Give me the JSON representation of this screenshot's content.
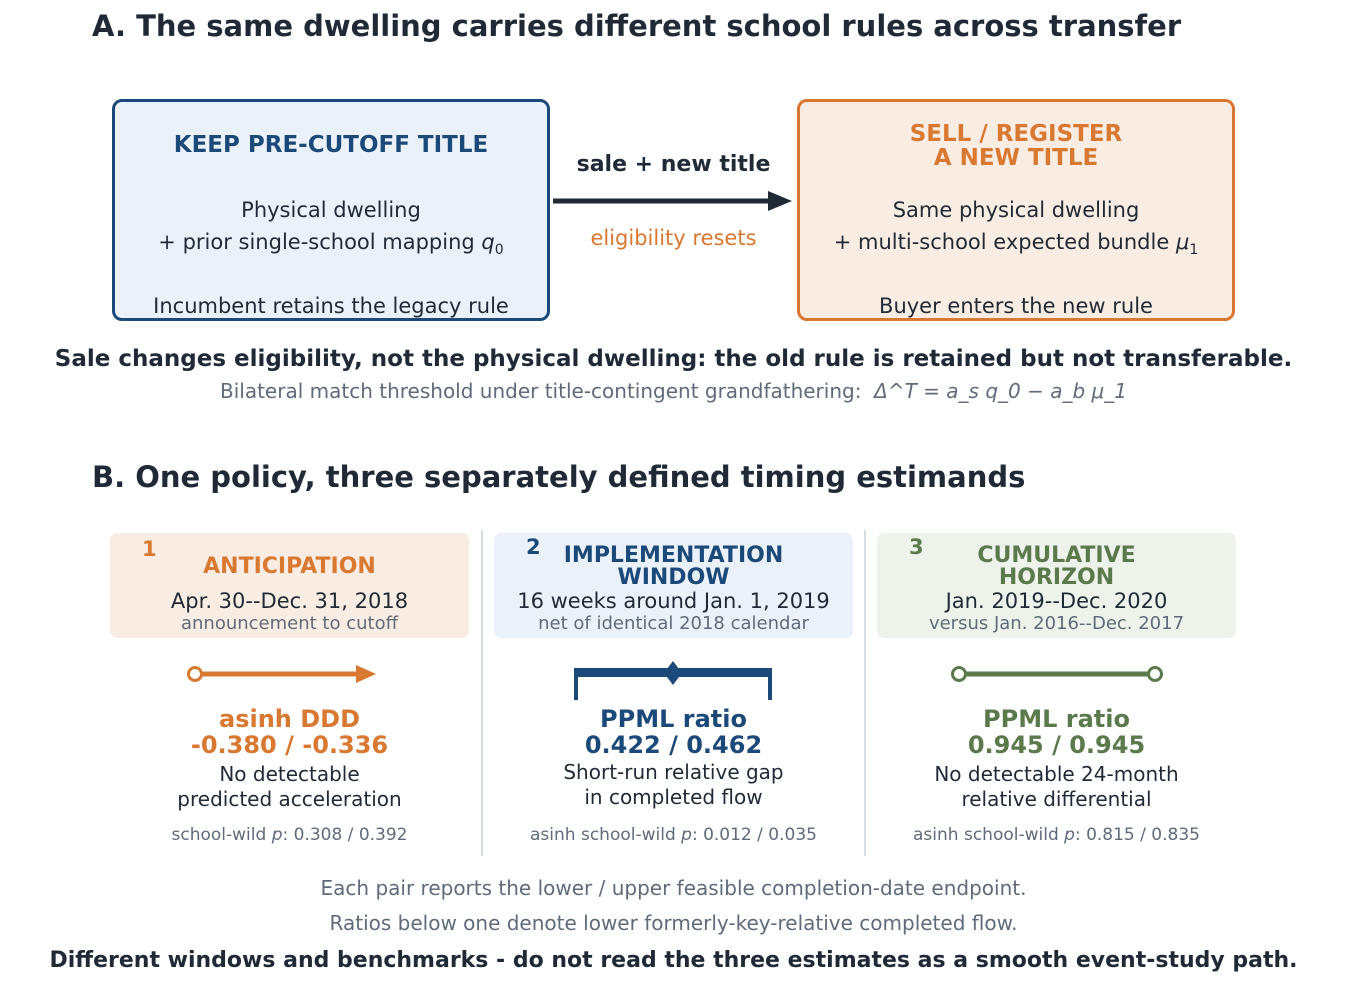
{
  "panel_a": {
    "title": "A.  The same dwelling carries different school rules across transfer",
    "left_box": {
      "header": "KEEP PRE-CUTOFF TITLE",
      "line1": "Physical dwelling",
      "line2_prefix": "+ prior single-school mapping ",
      "line2_symbol": "q",
      "line2_sub": "0",
      "footer": "Incumbent retains the legacy rule"
    },
    "arrow": {
      "top_label": "sale + new title",
      "bottom_label": "eligibility resets"
    },
    "right_box": {
      "header_line1": "SELL / REGISTER",
      "header_line2": "A NEW TITLE",
      "line1": "Same physical dwelling",
      "line2_prefix": "+ multi-school expected bundle ",
      "line2_symbol": "μ",
      "line2_sub": "1",
      "footer": "Buyer enters the new rule"
    },
    "summary": "Sale changes eligibility, not the physical dwelling: the old rule is retained but not transferable.",
    "formula_text": "Bilateral match threshold under title-contingent grandfathering:",
    "formula": "Δ^T = a_s q_0 − a_b μ_1"
  },
  "panel_b": {
    "title": "B.  One policy, three separately defined timing estimands",
    "cards": [
      {
        "number": "1",
        "title_line1": "ANTICIPATION",
        "title_line2": "",
        "date": "Apr. 30--Dec. 31, 2018",
        "sub": "announcement to cutoff",
        "estimator": "asinh DDD",
        "estimate": "-0.380 / -0.336",
        "desc_line1": "No detectable",
        "desc_line2": "predicted acceleration",
        "pval_label": "school-wild ",
        "pval_values": ":  0.308 / 0.392",
        "color": "#d97830",
        "glyph": "open-arrow"
      },
      {
        "number": "2",
        "title_line1": "IMPLEMENTATION",
        "title_line2": "WINDOW",
        "date": "16 weeks around Jan. 1, 2019",
        "sub": "net of identical 2018 calendar",
        "estimator": "PPML ratio",
        "estimate": "0.422 / 0.462",
        "desc_line1": "Short-run relative gap",
        "desc_line2": "in completed flow",
        "pval_label": "asinh school-wild ",
        "pval_values": ":  0.012 / 0.035",
        "color": "#1b4a7a",
        "glyph": "bracket-window"
      },
      {
        "number": "3",
        "title_line1": "CUMULATIVE",
        "title_line2": "HORIZON",
        "date": "Jan. 2019--Dec. 2020",
        "sub": "versus Jan. 2016--Dec. 2017",
        "estimator": "PPML ratio",
        "estimate": "0.945 / 0.945",
        "desc_line1": "No detectable 24-month",
        "desc_line2": "relative differential",
        "pval_label": "asinh school-wild ",
        "pval_values": ":  0.815 / 0.835",
        "color": "#5b7a4c",
        "glyph": "open-segment"
      }
    ],
    "footnote1": "Each pair reports the lower / upper feasible completion-date endpoint.",
    "footnote2": "Ratios below one denote lower formerly-key-relative completed flow.",
    "warning": "Different windows and benchmarks - do not read the three estimates as a smooth event-study path."
  },
  "colors": {
    "blue": "#1b4a7a",
    "orange": "#d97830",
    "green": "#5b7a4c",
    "dark": "#1f2a36",
    "muted": "#5f6b7a"
  }
}
